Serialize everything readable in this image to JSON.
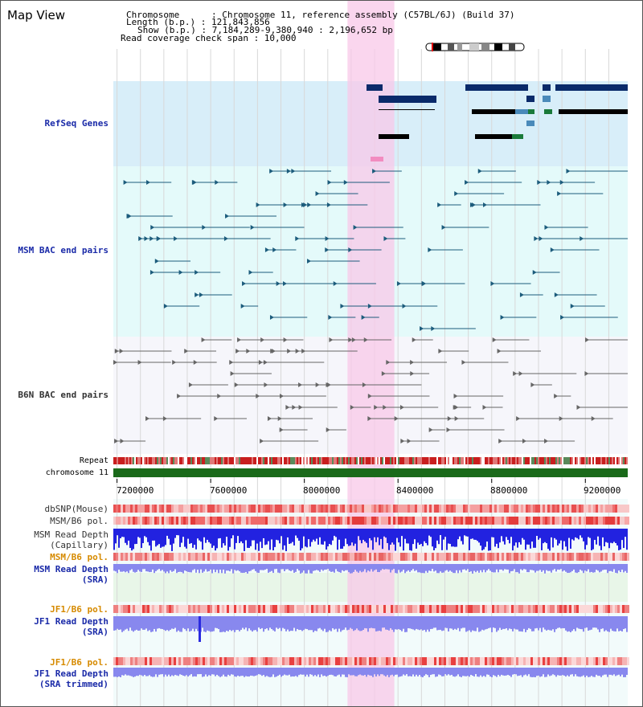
{
  "header": {
    "title": "Map View",
    "lines": [
      "Chromosome      : Chromosome 11, reference assembly (C57BL/6J) (Build 37)",
      "Length (b.p.) : 121,843,856",
      "Show (b.p.) : 7,184,289-9,380,940 : 2,196,652 bp",
      "Read coverage check span : 10,000"
    ]
  },
  "tracks": {
    "refseq": "RefSeq Genes",
    "msm_bac": "MSM BAC end pairs",
    "b6n_bac": "B6N BAC end pairs",
    "repeat": "Repeat",
    "chrom": "chromosome 11",
    "dbsnp": "dbSNP(Mouse)",
    "msm_b6_pol": "MSM/B6 pol.",
    "msm_read_depth_cap": "MSM Read Depth\n(Capillary)",
    "msm_b6_pol_sra": "MSM/B6 pol.",
    "msm_read_depth_sra": "MSM Read Depth\n(SRA)",
    "jf1_b6_pol": "JF1/B6 pol.",
    "jf1_read_depth_sra": "JF1 Read Depth\n(SRA)",
    "jf1_b6_pol_trim": "JF1/B6 pol.",
    "jf1_read_depth_trim": "JF1 Read Depth\n(SRA trimmed)"
  },
  "axis": {
    "ticks": [
      "7200000",
      "7600000",
      "8000000",
      "8400000",
      "8800000",
      "9200000"
    ],
    "range": [
      7184289,
      9380940
    ]
  },
  "highlight_range": [
    8184289,
    8384289
  ],
  "colors": {
    "refseq_bg": "#d8eef9",
    "bac_bg": "#e4fafa",
    "highlight": "#f8c8e8",
    "gene": "#0a2a6a",
    "msm_pair": "#1c5c7c",
    "b6n_pair": "#666666",
    "chrom_green": "#1a6a1a",
    "read_depth_blue": "#2222e0",
    "sra_blue": "#8888ee"
  }
}
